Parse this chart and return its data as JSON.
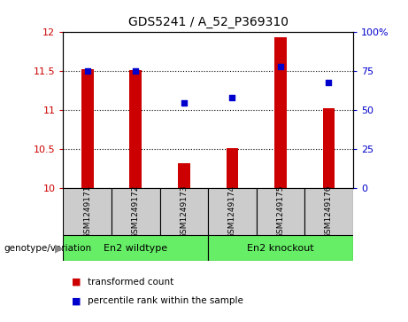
{
  "title": "GDS5241 / A_52_P369310",
  "samples": [
    "GSM1249171",
    "GSM1249172",
    "GSM1249173",
    "GSM1249174",
    "GSM1249175",
    "GSM1249176"
  ],
  "bar_values": [
    11.53,
    11.52,
    10.32,
    10.52,
    11.93,
    11.03
  ],
  "dot_values": [
    75,
    75,
    55,
    58,
    78,
    68
  ],
  "ylim_left": [
    10,
    12
  ],
  "ylim_right": [
    0,
    100
  ],
  "yticks_left": [
    10,
    10.5,
    11,
    11.5,
    12
  ],
  "yticks_right": [
    0,
    25,
    50,
    75,
    100
  ],
  "bar_color": "#cc0000",
  "dot_color": "#0000cc",
  "groups": [
    {
      "label": "En2 wildtype",
      "indices": [
        0,
        1,
        2
      ],
      "color": "#66ee66"
    },
    {
      "label": "En2 knockout",
      "indices": [
        3,
        4,
        5
      ],
      "color": "#66ee66"
    }
  ],
  "genotype_label": "genotype/variation",
  "legend_bar": "transformed count",
  "legend_dot": "percentile rank within the sample",
  "grid_color": "black",
  "tick_label_color_left": "#cc0000",
  "tick_label_color_right": "#0000cc",
  "bar_width": 0.25,
  "sample_box_color": "#cccccc",
  "background_color": "#ffffff"
}
